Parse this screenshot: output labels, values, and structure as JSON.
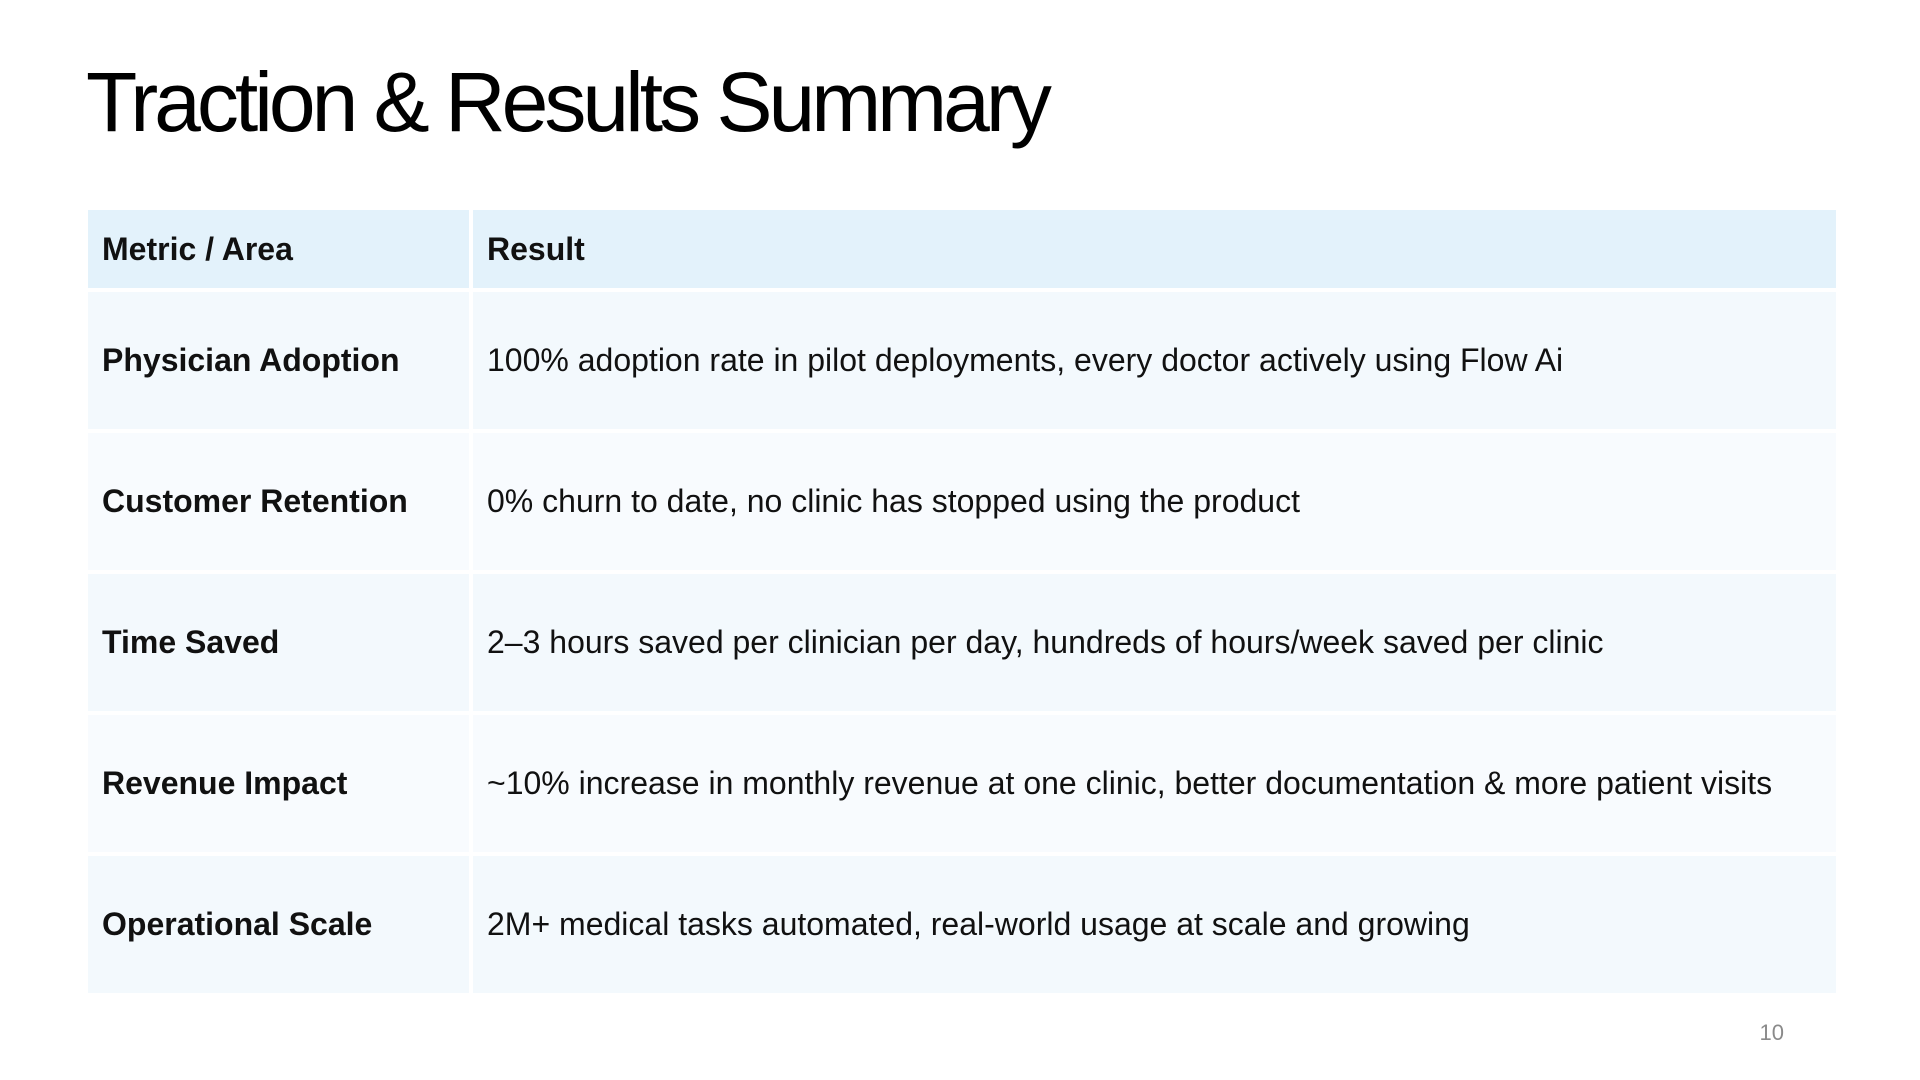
{
  "slide": {
    "title": "Traction & Results Summary",
    "page_number": "10"
  },
  "table": {
    "headers": [
      "Metric / Area",
      "Result"
    ],
    "rows": [
      {
        "metric": "Physician Adoption",
        "result": "100% adoption rate in pilot deployments, every doctor actively using Flow Ai"
      },
      {
        "metric": "Customer Retention",
        "result": "0% churn to date, no clinic has stopped using the product"
      },
      {
        "metric": "Time Saved",
        "result": "2–3 hours saved per clinician per day, hundreds of hours/week saved per clinic"
      },
      {
        "metric": "Revenue Impact",
        "result": "~10% increase in monthly revenue at one clinic, better documentation & more patient visits"
      },
      {
        "metric": "Operational Scale",
        "result": "2M+ medical tasks automated, real-world usage at scale and growing"
      }
    ]
  },
  "colors": {
    "header_fill": "#e3f2fb",
    "row_fill_a": "#f3f9fd",
    "row_fill_b": "#f8fbfe",
    "text": "#111111",
    "page_number": "#8a8a8a"
  }
}
